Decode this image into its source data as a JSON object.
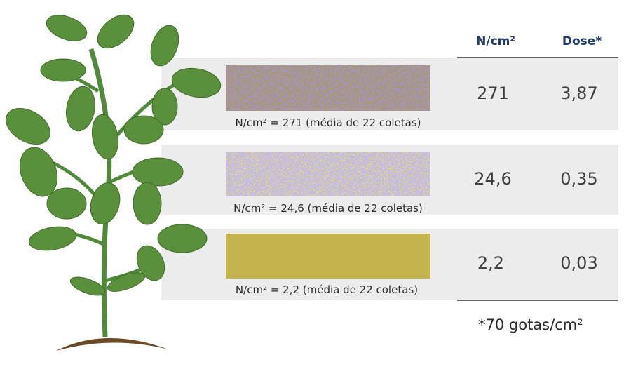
{
  "header": {
    "col_n": "N/cm²",
    "col_dose": "Dose*"
  },
  "rows": [
    {
      "caption": "N/cm² = 271 (média de 22 coletas)",
      "n": "271",
      "dose": "3,87"
    },
    {
      "caption": "N/cm² = 24,6 (média de 22 coletas)",
      "n": "24,6",
      "dose": "0,35"
    },
    {
      "caption": "N/cm² = 2,2 (média de 22 coletas)",
      "n": "2,2",
      "dose": "0,03"
    }
  ],
  "footnote": "*70 gotas/cm²"
}
